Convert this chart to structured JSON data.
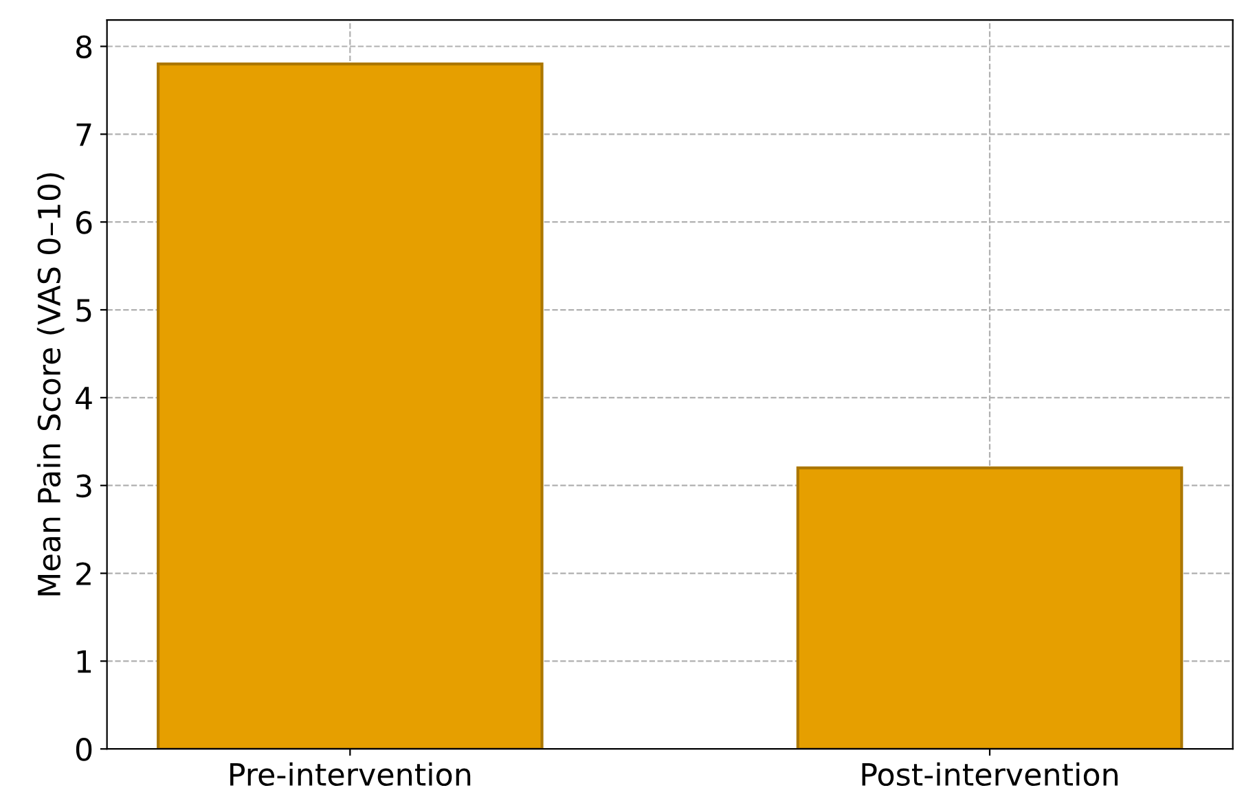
{
  "chart_data": {
    "type": "bar",
    "ylabel": "Mean Pain Score (VAS 0–10)",
    "categories": [
      "Pre-intervention",
      "Post-intervention"
    ],
    "values": [
      7.8,
      3.2
    ],
    "color": "#e69f00",
    "ylim": [
      0,
      8.3
    ],
    "yticks": [
      0,
      1,
      2,
      3,
      4,
      5,
      6,
      7,
      8
    ],
    "grid": true
  }
}
